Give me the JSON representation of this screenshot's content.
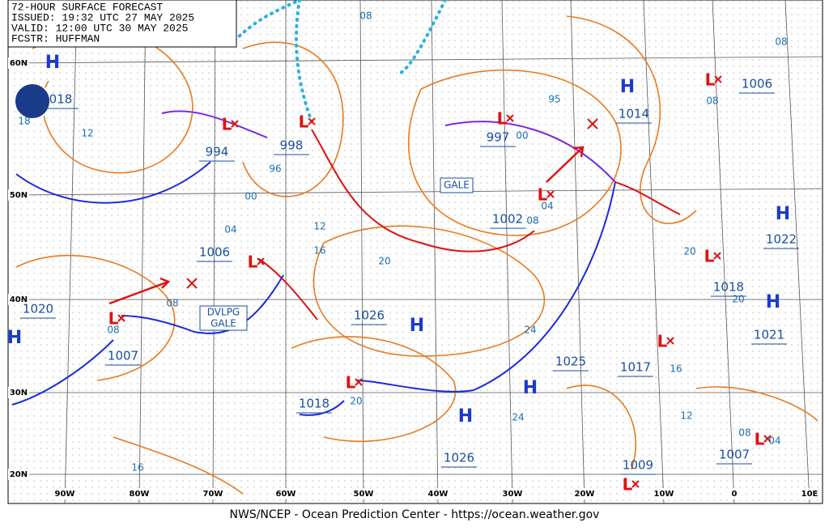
{
  "header": {
    "lines": [
      "72-HOUR SURFACE FORECAST",
      "ISSUED: 19:32 UTC 27 MAY 2025",
      "VALID:  12:00 UTC 30 MAY 2025",
      "FCSTR:  HUFFMAN"
    ]
  },
  "lat_labels": [
    "60N",
    "50N",
    "40N",
    "30N",
    "20N"
  ],
  "lon_labels": [
    "90W",
    "80W",
    "70W",
    "60W",
    "50W",
    "40W",
    "30W",
    "20W",
    "10W",
    "0",
    "10E"
  ],
  "high_markers": [
    "H",
    "H",
    "H",
    "H",
    "H",
    "H",
    "H",
    "H"
  ],
  "low_markers": [
    "L",
    "L",
    "L",
    "L",
    "L",
    "L",
    "L",
    "L",
    "L",
    "L",
    "L",
    "L"
  ],
  "pressure_labels": [
    "018",
    "994",
    "998",
    "997",
    "1014",
    "1006",
    "1002",
    "1022",
    "1006",
    "1018",
    "1020",
    "1026",
    "1021",
    "1007",
    "1025",
    "1017",
    "1018",
    "1026",
    "1009",
    "1007"
  ],
  "isobar_labels": [
    "08",
    "08",
    "08",
    "08",
    "08",
    "08",
    "08",
    "12",
    "12",
    "12",
    "96",
    "00",
    "00",
    "04",
    "04",
    "04",
    "16",
    "16",
    "16",
    "20",
    "20",
    "20",
    "20",
    "24",
    "24",
    "95",
    "18"
  ],
  "gale_labels": [
    "GALE",
    "DVLPG",
    "GALE"
  ],
  "footer": "NWS/NCEP - Ocean Prediction Center - https://ocean.weather.gov"
}
